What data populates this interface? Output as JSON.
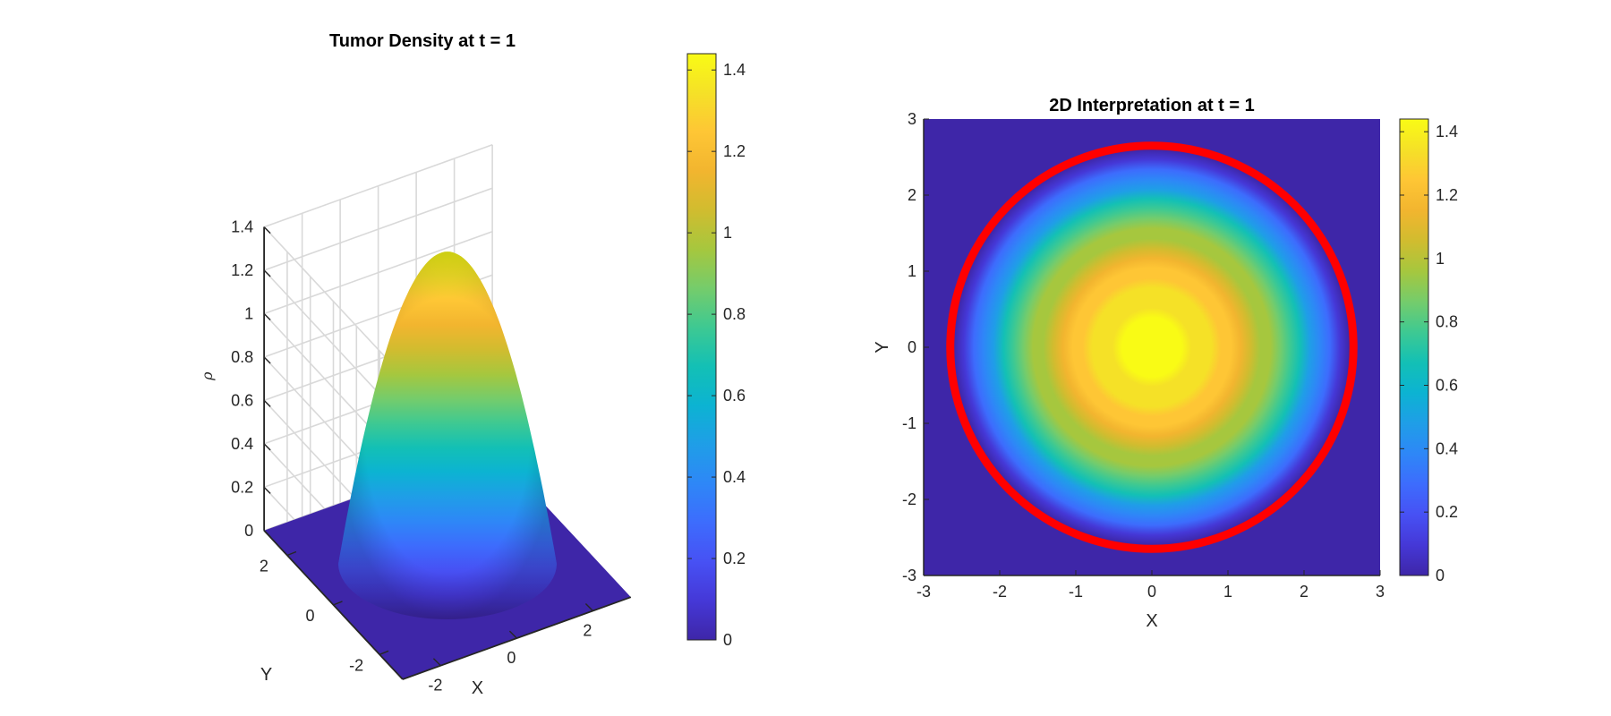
{
  "chart_data": [
    {
      "type": "surface",
      "title": "Tumor Density at t = 1",
      "xlabel": "X",
      "ylabel": "Y",
      "zlabel": "ρ",
      "xlim": [
        -3,
        3
      ],
      "ylim": [
        -3,
        3
      ],
      "zlim": [
        0,
        1.4
      ],
      "x_ticks": [
        -2,
        0,
        2
      ],
      "y_ticks": [
        -2,
        0,
        2
      ],
      "z_ticks": [
        0,
        0.2,
        0.4,
        0.6,
        0.8,
        1,
        1.2,
        1.4
      ],
      "peak_value": 1.44,
      "support_radius": 2.6,
      "grid": true,
      "colormap": "parula",
      "colorbar": {
        "min": 0,
        "max": 1.44,
        "ticks": [
          0,
          0.2,
          0.4,
          0.6,
          0.8,
          1,
          1.2,
          1.4
        ]
      }
    },
    {
      "type": "heatmap",
      "title": "2D Interpretation at t = 1",
      "xlabel": "X",
      "ylabel": "Y",
      "xlim": [
        -3,
        3
      ],
      "ylim": [
        -3,
        3
      ],
      "x_ticks": [
        -3,
        -2,
        -1,
        0,
        1,
        2,
        3
      ],
      "y_ticks": [
        -3,
        -2,
        -1,
        0,
        1,
        2,
        3
      ],
      "peak_value": 1.44,
      "support_radius": 2.6,
      "contour": {
        "radius": 2.65,
        "color": "#ff0000"
      },
      "colormap": "parula",
      "colorbar": {
        "min": 0,
        "max": 1.44,
        "ticks": [
          0,
          0.2,
          0.4,
          0.6,
          0.8,
          1,
          1.2,
          1.4
        ]
      }
    }
  ]
}
